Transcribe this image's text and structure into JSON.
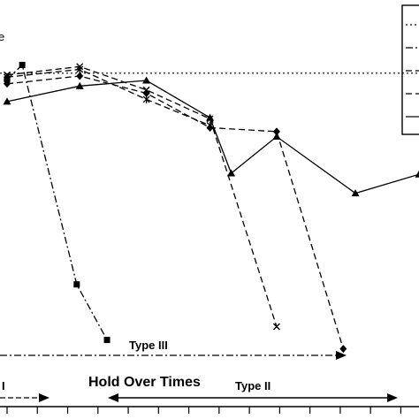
{
  "chart_data": {
    "type": "line",
    "title_fragment": "e",
    "y_reference_label": "",
    "legend": {
      "placement": "top-right",
      "entries": [
        "",
        "",
        "",
        "",
        ""
      ]
    },
    "series": [
      {
        "marker": "square",
        "dash": "dashdot",
        "points": [
          [
            0,
            98.9
          ],
          [
            0.5,
            101.5
          ],
          [
            2.3,
            62
          ],
          [
            3.3,
            52
          ]
        ]
      },
      {
        "marker": "x",
        "dash": "dashed",
        "points": [
          [
            0,
            99.7
          ],
          [
            2.4,
            101.2
          ],
          [
            4.6,
            97
          ],
          [
            6.7,
            91.8
          ],
          [
            8.9,
            54.4
          ]
        ]
      },
      {
        "marker": "star",
        "dash": "dashed",
        "points": [
          [
            0,
            99.3
          ],
          [
            2.4,
            100.7
          ],
          [
            4.6,
            95.3
          ],
          [
            6.7,
            90.6
          ]
        ]
      },
      {
        "marker": "diamond",
        "dash": "dashed",
        "points": [
          [
            0,
            98.1
          ],
          [
            2.4,
            99.5
          ],
          [
            4.6,
            96.4
          ],
          [
            6.7,
            90.2
          ],
          [
            8.9,
            89.5
          ],
          [
            11.1,
            50.4
          ]
        ]
      },
      {
        "marker": "triangle",
        "dash": "solid",
        "points": [
          [
            0,
            94.9
          ],
          [
            2.4,
            97.7
          ],
          [
            4.6,
            98.7
          ],
          [
            6.7,
            92
          ],
          [
            7.4,
            82
          ],
          [
            8.9,
            88.6
          ],
          [
            11.5,
            78.4
          ],
          [
            13.6,
            81.8
          ]
        ]
      }
    ],
    "reference_line": {
      "y": 100,
      "dash": "dotted"
    },
    "x_ticks": [
      0,
      1,
      2,
      3,
      4,
      5,
      6,
      7,
      8,
      9,
      10,
      11,
      12,
      13
    ],
    "xlim": [
      0,
      13.6
    ],
    "ylim": [
      40,
      110
    ],
    "annotations": {
      "hold_over_times": "Hold Over Times",
      "type_ii": "Type II",
      "type_iii": "Type III",
      "type_i_partial": "I"
    }
  }
}
